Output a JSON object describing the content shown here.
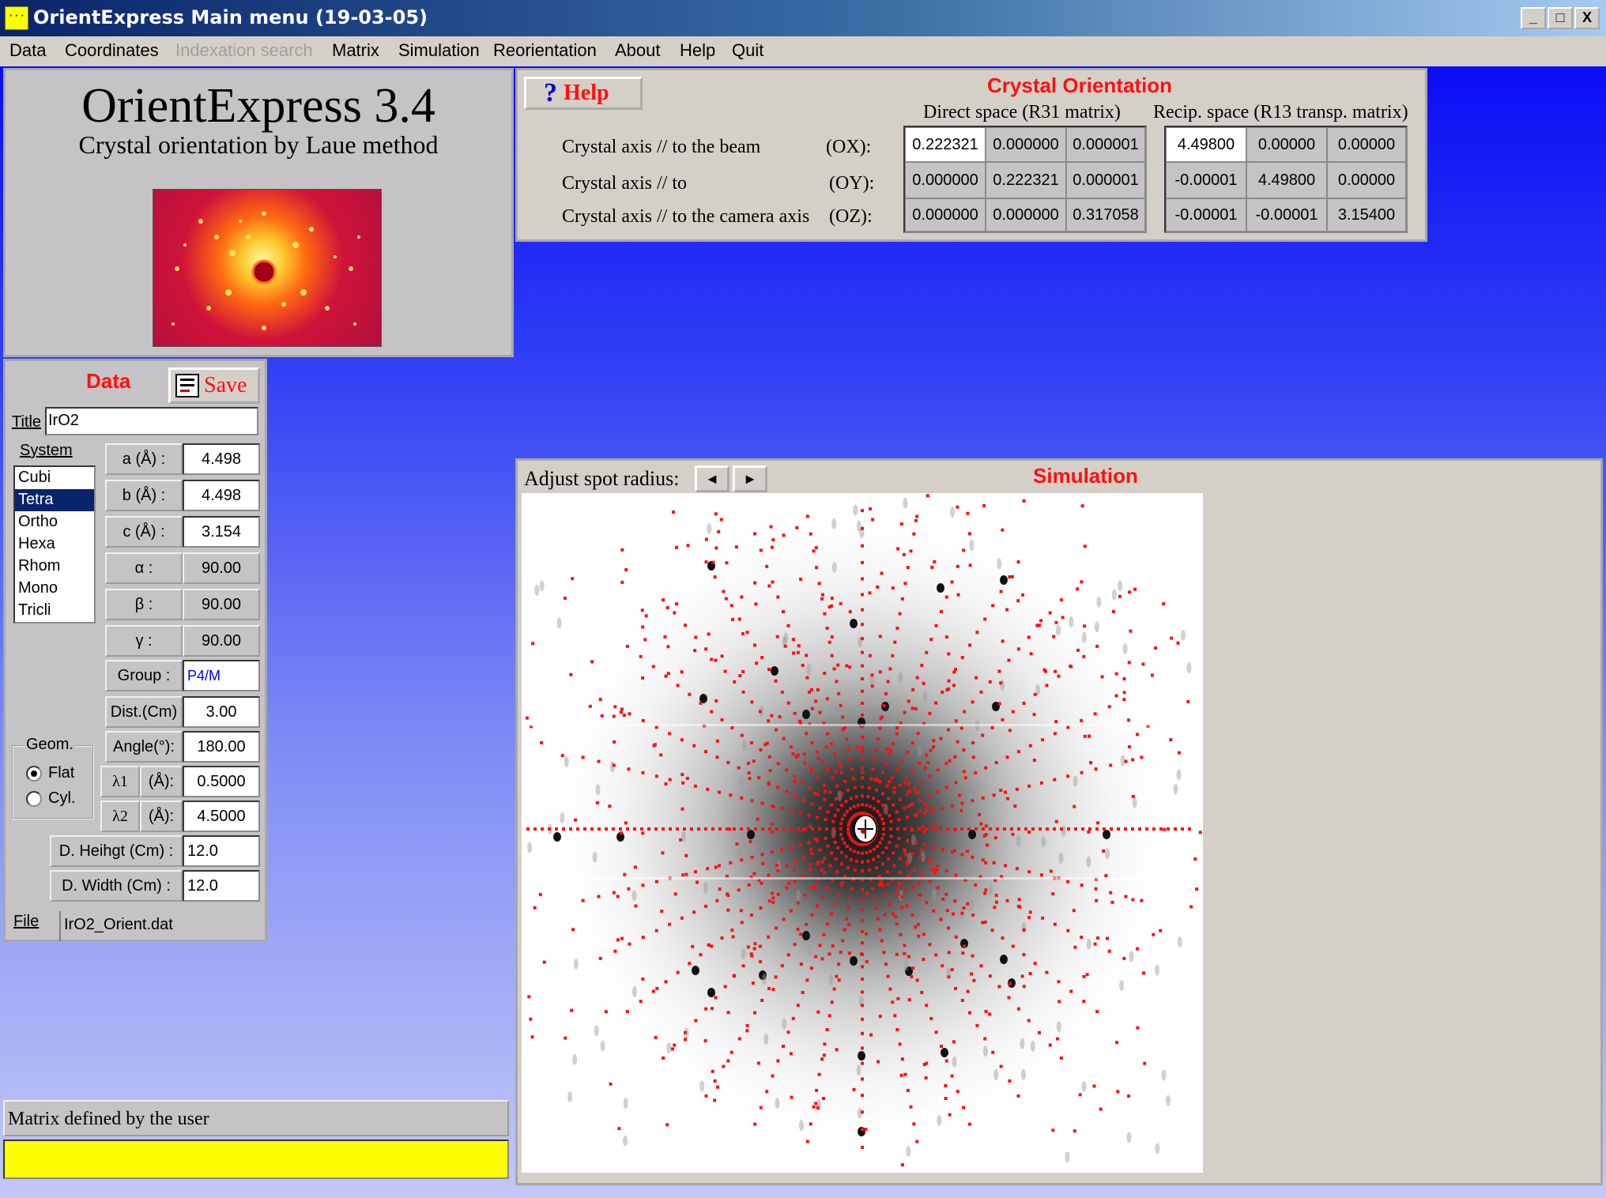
{
  "window": {
    "title": "OrientExpress Main menu (19-03-05)",
    "controls": [
      "_",
      "□",
      "X"
    ]
  },
  "menu": [
    {
      "label": "Data",
      "enabled": true
    },
    {
      "label": "Coordinates",
      "enabled": true
    },
    {
      "label": "Indexation search",
      "enabled": false
    },
    {
      "label": "Matrix",
      "enabled": true
    },
    {
      "label": "Simulation",
      "enabled": true
    },
    {
      "label": "Reorientation",
      "enabled": true
    },
    {
      "label": "About",
      "enabled": true
    },
    {
      "label": "Help",
      "enabled": true
    },
    {
      "label": "Quit",
      "enabled": true
    }
  ],
  "logo": {
    "app_name": "OrientExpress 3.4",
    "subtitle": "Crystal orientation by Laue method"
  },
  "orientation": {
    "help_label": "Help",
    "heading": "Crystal Orientation",
    "direct_header": "Direct space (R31 matrix)",
    "recip_header": "Recip. space (R13 transp. matrix)",
    "rows": [
      {
        "label": "Crystal axis // to the beam",
        "axis": "(OX):",
        "direct": [
          "0.222321",
          "0.000000",
          "0.000001"
        ],
        "recip": [
          "4.49800",
          "0.00000",
          "0.00000"
        ]
      },
      {
        "label": "Crystal axis // to",
        "axis": "(OY):",
        "direct": [
          "0.000000",
          "0.222321",
          "0.000001"
        ],
        "recip": [
          "-0.00001",
          "4.49800",
          "0.00000"
        ]
      },
      {
        "label": "Crystal axis // to the camera axis",
        "axis": "(OZ):",
        "direct": [
          "0.000000",
          "0.000000",
          "0.317058"
        ],
        "recip": [
          "-0.00001",
          "-0.00001",
          "3.15400"
        ]
      }
    ]
  },
  "data_panel": {
    "heading": "Data",
    "save_label": "Save",
    "title_label": "Title",
    "title_value": "IrO2",
    "system_label": "System",
    "systems": [
      "Cubi",
      "Tetra",
      "Ortho",
      "Hexa",
      "Rhom",
      "Mono",
      "Tricli"
    ],
    "selected_system": "Tetra",
    "params": [
      {
        "label": "a (Å) :",
        "value": "4.498"
      },
      {
        "label": "b (Å) :",
        "value": "4.498"
      },
      {
        "label": "c (Å) :",
        "value": "3.154"
      },
      {
        "label": "α :",
        "value": "90.00"
      },
      {
        "label": "β :",
        "value": "90.00"
      },
      {
        "label": "γ :",
        "value": "90.00"
      }
    ],
    "group_label": "Group :",
    "group_value": "P4/M",
    "dist_label": "Dist.(Cm)",
    "dist_value": "3.00",
    "angle_label": "Angle(°):",
    "angle_value": "180.00",
    "geom_label": "Geom.",
    "geom_options": [
      "Flat",
      "Cyl."
    ],
    "geom_selected": "Flat",
    "lambda1_label": "λ1",
    "lambda2_label": "λ2",
    "lambda_unit": "(Å):",
    "lambda1_value": "0.5000",
    "lambda2_value": "4.5000",
    "height_label": "D. Heihgt  (Cm) :",
    "height_value": "12.0",
    "width_label": "D. Width (Cm) :",
    "width_value": "12.0",
    "file_label": "File",
    "file_value": "IrO2_Orient.dat"
  },
  "status": {
    "message": "Matrix defined by the user",
    "bar_color": "#ffff00"
  },
  "simulation": {
    "heading": "Simulation",
    "spot_radius_label": "Adjust spot radius:",
    "left_arrow": "◄",
    "right_arrow": "►",
    "spot_color": "#ff1010"
  }
}
